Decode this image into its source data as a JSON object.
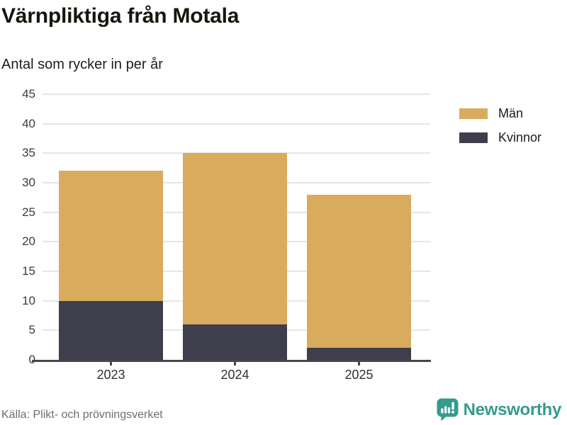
{
  "chart_data": {
    "type": "bar",
    "stacked": true,
    "title": "Värnpliktiga från Motala",
    "subtitle": "Antal som rycker in per år",
    "categories": [
      "2023",
      "2024",
      "2025"
    ],
    "series": [
      {
        "name": "Män",
        "color": "#d9ab5c",
        "values": [
          22,
          29,
          26
        ]
      },
      {
        "name": "Kvinnor",
        "color": "#3f3e4c",
        "values": [
          10,
          6,
          2
        ]
      }
    ],
    "stack_order_bottom_up": [
      "Kvinnor",
      "Män"
    ],
    "stack_totals": [
      32,
      35,
      28
    ],
    "xlabel": "",
    "ylabel": "",
    "ylim": [
      0,
      45
    ],
    "ytick_step": 5,
    "yticks": [
      0,
      5,
      10,
      15,
      20,
      25,
      30,
      35,
      40,
      45
    ],
    "grid": true,
    "legend_position": "top-right",
    "source": "Källa: Plikt- och prövningsverket"
  },
  "brand": {
    "name": "Newsworthy",
    "color": "#359b8e",
    "icon": "speech-bubble-bar-chart"
  },
  "colors": {
    "background": "#ffffff",
    "gridline": "#e6e6e9",
    "axis": "#47464e",
    "title_text": "#16160f",
    "tick_text": "#3a3a40",
    "source_text": "#6e6e73"
  }
}
